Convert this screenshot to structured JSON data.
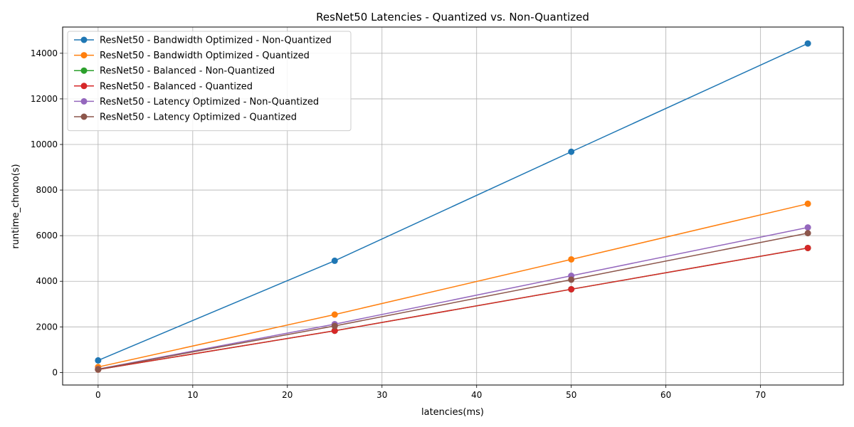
{
  "chart_data": {
    "type": "line",
    "title": "ResNet50 Latencies - Quantized vs. Non-Quantized",
    "xlabel": "latencies(ms)",
    "ylabel": "runtime_chrono(s)",
    "x": [
      0,
      25,
      50,
      75
    ],
    "xlim": [
      -3.75,
      78.75
    ],
    "ylim": [
      -550,
      15150
    ],
    "xticks": [
      0,
      10,
      20,
      30,
      40,
      50,
      60,
      70
    ],
    "yticks": [
      0,
      2000,
      4000,
      6000,
      8000,
      10000,
      12000,
      14000
    ],
    "grid": true,
    "legend_position": "top-left",
    "series": [
      {
        "name": "ResNet50 - Bandwidth Optimized - Non-Quantized",
        "color": "#1f77b4",
        "values": [
          530,
          4900,
          9680,
          14430
        ]
      },
      {
        "name": "ResNet50 - Bandwidth Optimized - Quantized",
        "color": "#ff7f0e",
        "values": [
          240,
          2540,
          4960,
          7400
        ]
      },
      {
        "name": "ResNet50 - Balanced - Non-Quantized",
        "color": "#2ca02c",
        "values": [
          130,
          1830,
          3650,
          5460
        ]
      },
      {
        "name": "ResNet50 - Balanced - Quantized",
        "color": "#d62728",
        "values": [
          130,
          1830,
          3650,
          5460
        ]
      },
      {
        "name": "ResNet50 - Latency Optimized - Non-Quantized",
        "color": "#9467bd",
        "values": [
          150,
          2120,
          4240,
          6360
        ]
      },
      {
        "name": "ResNet50 - Latency Optimized - Quantized",
        "color": "#8c564b",
        "values": [
          140,
          2040,
          4070,
          6110
        ]
      }
    ]
  }
}
